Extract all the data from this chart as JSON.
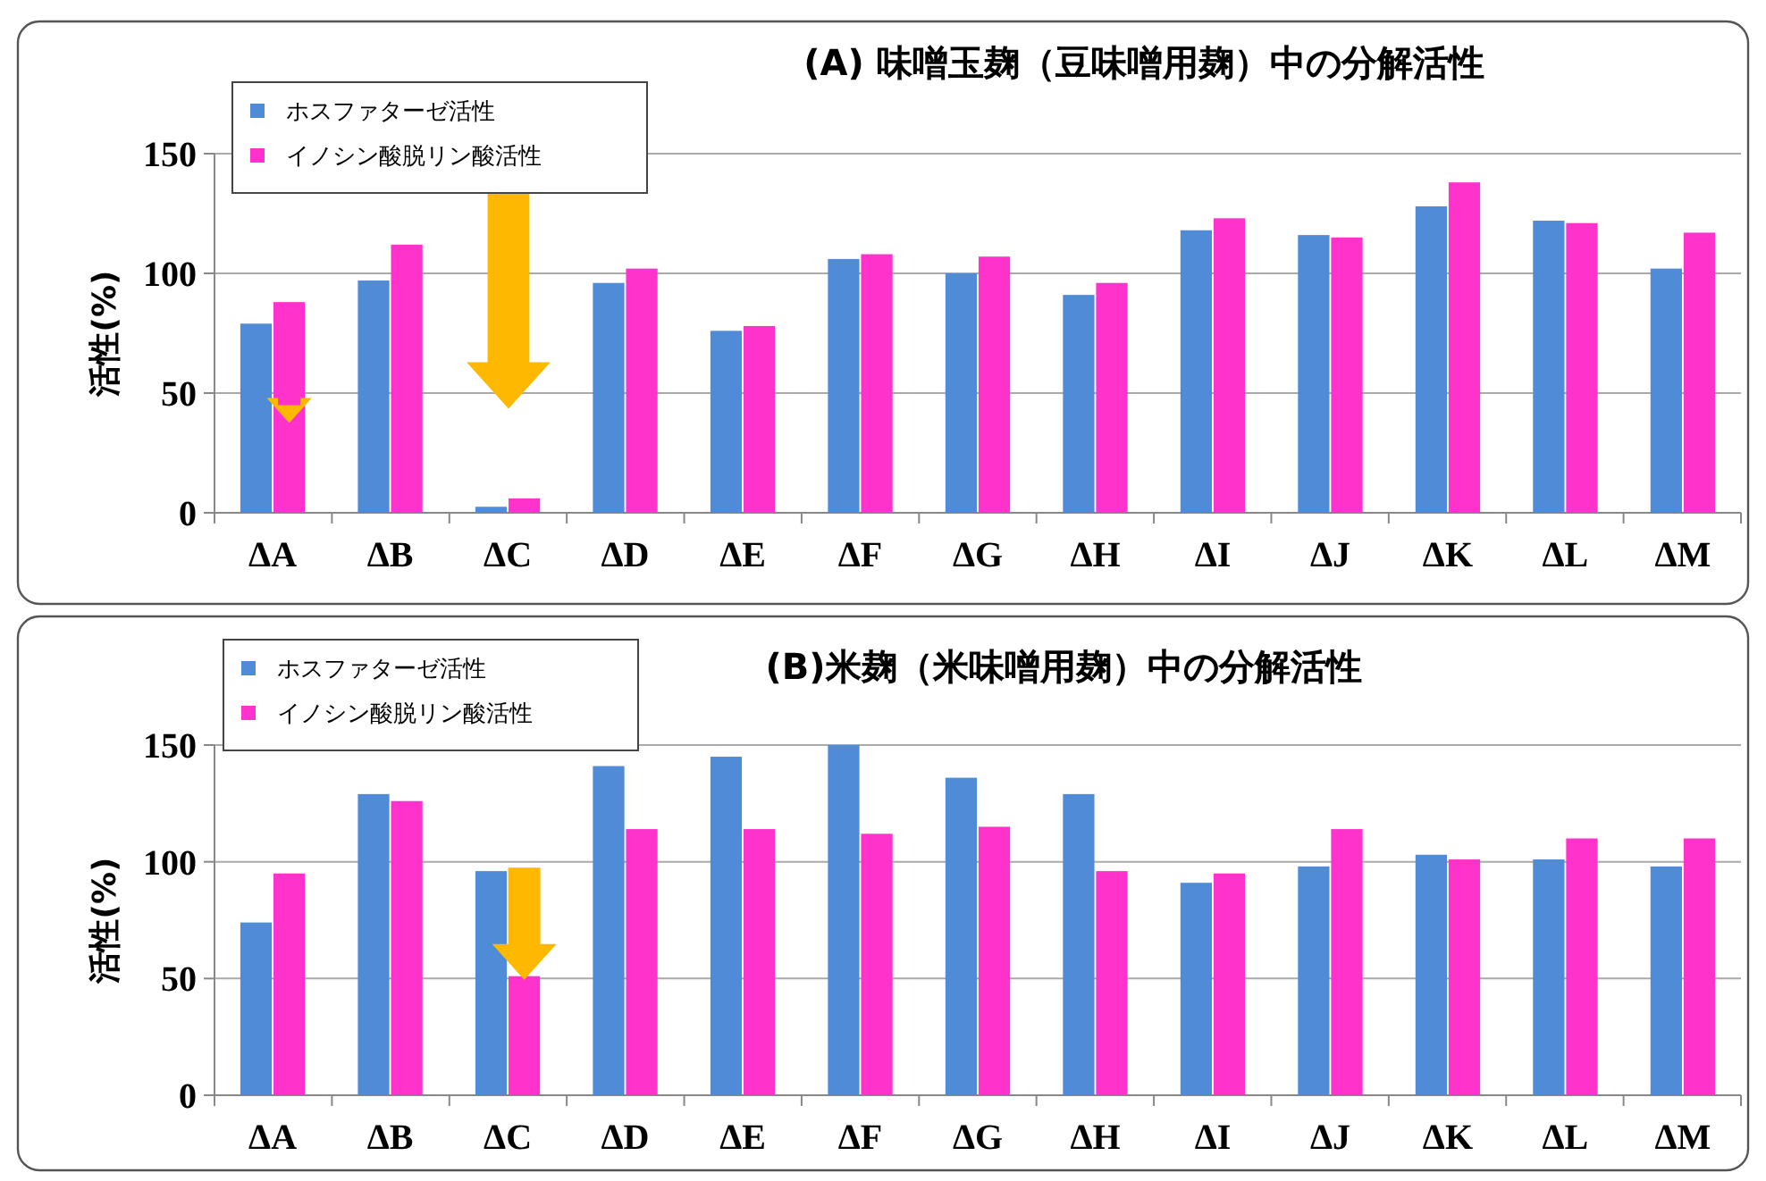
{
  "chart_data": [
    {
      "type": "bar",
      "title": "(A) 味噌玉麹（豆味噌用麹）中の分解活性",
      "ylabel": "活性(%)",
      "categories": [
        "ΔA",
        "ΔB",
        "ΔC",
        "ΔD",
        "ΔE",
        "ΔF",
        "ΔG",
        "ΔH",
        "ΔI",
        "ΔJ",
        "ΔK",
        "ΔL",
        "ΔM"
      ],
      "series": [
        {
          "name": "ホスファターゼ活性",
          "color": "#4f8bd6",
          "values": [
            79,
            97,
            2.5,
            96,
            76,
            106,
            100,
            91,
            118,
            116,
            128,
            122,
            102
          ]
        },
        {
          "name": "イノシン酸脱リン酸活性",
          "color": "#ff33cc",
          "values": [
            88,
            112,
            6,
            102,
            78,
            108,
            107,
            96,
            123,
            115,
            138,
            121,
            117
          ]
        }
      ],
      "ylim": [
        0,
        150
      ],
      "yticks": [
        0,
        50,
        100,
        150
      ],
      "grid": "y",
      "legend": "top left"
    },
    {
      "type": "bar",
      "title": "(B)米麹（米味噌用麹）中の分解活性",
      "ylabel": "活性(%)",
      "categories": [
        "ΔA",
        "ΔB",
        "ΔC",
        "ΔD",
        "ΔE",
        "ΔF",
        "ΔG",
        "ΔH",
        "ΔI",
        "ΔJ",
        "ΔK",
        "ΔL",
        "ΔM"
      ],
      "series": [
        {
          "name": "ホスファターゼ活性",
          "color": "#4f8bd6",
          "values": [
            74,
            129,
            96,
            141,
            145,
            150,
            136,
            129,
            91,
            98,
            103,
            101,
            98
          ]
        },
        {
          "name": "イノシン酸脱リン酸活性",
          "color": "#ff33cc",
          "values": [
            95,
            126,
            51,
            114,
            114,
            112,
            115,
            96,
            95,
            114,
            101,
            110,
            110
          ]
        }
      ],
      "ylim": [
        0,
        150
      ],
      "yticks": [
        0,
        50,
        100,
        150
      ],
      "grid": "y",
      "legend": "top left"
    }
  ]
}
